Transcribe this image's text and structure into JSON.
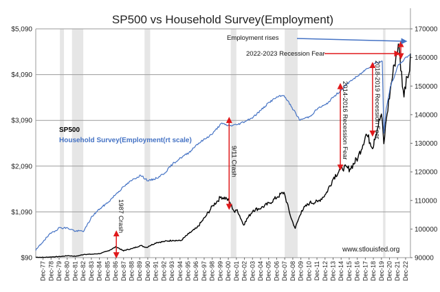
{
  "chart_data": {
    "type": "line",
    "title": "SP500 vs Household Survey(Employment)",
    "source_note": "www.stlouisfed.org",
    "x_start": 1977.0,
    "x_end": 2023.5,
    "left_axis": {
      "range": [
        90,
        5090
      ],
      "ticks": [
        90,
        1090,
        2090,
        3090,
        4090,
        5090
      ],
      "tick_labels": [
        "$90",
        "$1,090",
        "$2,090",
        "$3,090",
        "$4,090",
        "$5,090"
      ]
    },
    "right_axis": {
      "label": "rt scale",
      "range": [
        90000,
        170000
      ],
      "ticks": [
        90000,
        100000,
        110000,
        120000,
        130000,
        140000,
        150000,
        160000,
        170000
      ],
      "tick_labels": [
        "90000",
        "100000",
        "110000",
        "120000",
        "130000",
        "140000",
        "150000",
        "160000",
        "170000"
      ]
    },
    "x_tick_labels": [
      "Dec-77",
      "Dec-78",
      "Dec-79",
      "Dec-80",
      "Dec-81",
      "Dec-82",
      "Dec-83",
      "Dec-84",
      "Dec-85",
      "Dec-86",
      "Dec-87",
      "Dec-88",
      "Dec-89",
      "Dec-90",
      "Dec-91",
      "Dec-92",
      "Dec-93",
      "Dec-94",
      "Dec-95",
      "Dec-96",
      "Dec-97",
      "Dec-98",
      "Dec-99",
      "Dec-00",
      "Dec-01",
      "Dec-02",
      "Dec-03",
      "Dec-04",
      "Dec-05",
      "Dec-06",
      "Dec-07",
      "Dec-08",
      "Dec-09",
      "Dec-10",
      "Dec-11",
      "Dec-12",
      "Dec-13",
      "Dec-14",
      "Dec-15",
      "Dec-16",
      "Dec-17",
      "Dec-18",
      "Dec-19",
      "Dec-20",
      "Dec-21",
      "Dec-22"
    ],
    "recession_bands": [
      [
        1980.0,
        1980.5
      ],
      [
        1981.5,
        1982.9
      ],
      [
        1990.5,
        1991.2
      ],
      [
        2001.2,
        2001.9
      ],
      [
        2007.9,
        2009.5
      ],
      [
        2020.1,
        2020.4
      ]
    ],
    "series": [
      {
        "name": "SP500",
        "axis": "left",
        "color": "#000000",
        "points": [
          [
            1977.0,
            100
          ],
          [
            1978.0,
            96
          ],
          [
            1979.0,
            107
          ],
          [
            1980.0,
            114
          ],
          [
            1981.0,
            133
          ],
          [
            1982.0,
            120
          ],
          [
            1983.0,
            162
          ],
          [
            1984.0,
            165
          ],
          [
            1985.0,
            180
          ],
          [
            1986.0,
            240
          ],
          [
            1987.0,
            330
          ],
          [
            1987.9,
            235
          ],
          [
            1988.0,
            250
          ],
          [
            1989.0,
            290
          ],
          [
            1990.0,
            355
          ],
          [
            1990.8,
            310
          ],
          [
            1991.0,
            340
          ],
          [
            1992.0,
            420
          ],
          [
            1993.0,
            445
          ],
          [
            1994.0,
            470
          ],
          [
            1995.0,
            460
          ],
          [
            1996.0,
            615
          ],
          [
            1997.0,
            740
          ],
          [
            1998.0,
            970
          ],
          [
            1999.0,
            1230
          ],
          [
            2000.0,
            1420
          ],
          [
            2000.7,
            1380
          ],
          [
            2001.0,
            1320
          ],
          [
            2001.7,
            1080
          ],
          [
            2002.0,
            1140
          ],
          [
            2002.8,
            800
          ],
          [
            2003.0,
            880
          ],
          [
            2004.0,
            1130
          ],
          [
            2005.0,
            1180
          ],
          [
            2006.0,
            1280
          ],
          [
            2007.0,
            1420
          ],
          [
            2007.8,
            1520
          ],
          [
            2008.0,
            1400
          ],
          [
            2008.7,
            950
          ],
          [
            2009.2,
            730
          ],
          [
            2010.0,
            1120
          ],
          [
            2011.0,
            1290
          ],
          [
            2012.0,
            1310
          ],
          [
            2013.0,
            1480
          ],
          [
            2014.0,
            1850
          ],
          [
            2015.0,
            2060
          ],
          [
            2016.0,
            2030
          ],
          [
            2017.0,
            2280
          ],
          [
            2018.0,
            2790
          ],
          [
            2018.9,
            2500
          ],
          [
            2019.0,
            2680
          ],
          [
            2019.9,
            3230
          ],
          [
            2020.2,
            2580
          ],
          [
            2020.5,
            3100
          ],
          [
            2021.0,
            3750
          ],
          [
            2021.5,
            4300
          ],
          [
            2022.0,
            4760
          ],
          [
            2022.7,
            3600
          ],
          [
            2023.0,
            4050
          ],
          [
            2023.3,
            4100
          ],
          [
            2023.5,
            4550
          ]
        ]
      },
      {
        "name": "Household Survey(Employment(rt scale)",
        "axis": "right",
        "color": "#4472c4",
        "points": [
          [
            1977.0,
            92500
          ],
          [
            1978.0,
            96000
          ],
          [
            1979.0,
            98800
          ],
          [
            1980.0,
            100500
          ],
          [
            1981.0,
            100300
          ],
          [
            1982.0,
            99200
          ],
          [
            1983.0,
            99400
          ],
          [
            1984.0,
            104500
          ],
          [
            1985.0,
            107200
          ],
          [
            1986.0,
            109400
          ],
          [
            1987.0,
            112400
          ],
          [
            1988.0,
            115000
          ],
          [
            1989.0,
            117200
          ],
          [
            1990.0,
            118800
          ],
          [
            1991.0,
            116800
          ],
          [
            1992.0,
            117800
          ],
          [
            1993.0,
            119600
          ],
          [
            1994.0,
            122800
          ],
          [
            1995.0,
            124900
          ],
          [
            1996.0,
            126700
          ],
          [
            1997.0,
            129600
          ],
          [
            1998.0,
            131500
          ],
          [
            1999.0,
            133500
          ],
          [
            2000.0,
            136900
          ],
          [
            2001.0,
            136100
          ],
          [
            2002.0,
            136500
          ],
          [
            2003.0,
            137700
          ],
          [
            2004.0,
            139200
          ],
          [
            2005.0,
            141700
          ],
          [
            2006.0,
            144400
          ],
          [
            2007.0,
            146200
          ],
          [
            2007.8,
            146700
          ],
          [
            2008.0,
            146000
          ],
          [
            2009.0,
            141600
          ],
          [
            2009.8,
            138000
          ],
          [
            2010.0,
            138400
          ],
          [
            2011.0,
            139300
          ],
          [
            2012.0,
            142200
          ],
          [
            2013.0,
            143500
          ],
          [
            2014.0,
            146300
          ],
          [
            2015.0,
            148800
          ],
          [
            2016.0,
            151700
          ],
          [
            2017.0,
            153500
          ],
          [
            2018.0,
            155900
          ],
          [
            2019.0,
            157900
          ],
          [
            2020.0,
            158700
          ],
          [
            2020.2,
            133500
          ],
          [
            2020.5,
            142000
          ],
          [
            2021.0,
            149800
          ],
          [
            2021.5,
            153200
          ],
          [
            2022.0,
            157500
          ],
          [
            2022.5,
            158600
          ],
          [
            2023.0,
            160200
          ],
          [
            2023.5,
            161000
          ]
        ]
      }
    ],
    "legend": [
      {
        "label": "SP500",
        "color": "#000000"
      },
      {
        "label": "Household Survey(Employment(rt scale)",
        "color": "#4472c4"
      }
    ],
    "annotations": [
      {
        "id": "crash-1987",
        "text": "1987 Crash",
        "x": 1987.0,
        "y_from": 620,
        "y_to": 140,
        "label_rotation": 90
      },
      {
        "id": "crash-911",
        "text": "9/11 Crash",
        "x": 2001.0,
        "y_from": 3100,
        "y_to": 1200,
        "label_rotation": 90
      },
      {
        "id": "fear-2014",
        "text": "2014-2016 Recession Fear",
        "x": 2014.8,
        "y_from": 3840,
        "y_to": 2060,
        "label_rotation": 90
      },
      {
        "id": "fear-2018",
        "text": "2018-2019 Recession Fear",
        "x": 2018.8,
        "y_from": 4300,
        "y_to": 2800,
        "label_rotation": 90
      },
      {
        "id": "fear-2022",
        "text": "2022-2023 Recession Fear",
        "x": 2022.3
      },
      {
        "id": "employment-rises",
        "text": "Employment rises"
      }
    ]
  }
}
